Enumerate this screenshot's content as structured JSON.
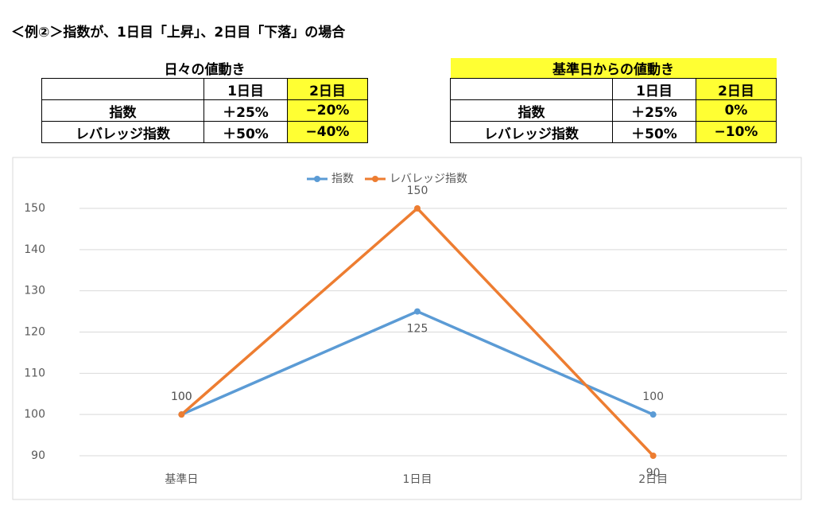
{
  "header": {
    "title": "＜例②＞指数が、1日目「上昇」、2日目「下落」の場合"
  },
  "tables": [
    {
      "title": "日々の値動き",
      "columns": [
        "1日目",
        "2日目"
      ],
      "rows": [
        [
          "指数",
          "＋25%",
          "−20%"
        ],
        [
          "レバレッジ指数",
          "＋50%",
          "−40%"
        ]
      ]
    },
    {
      "title": "基準日からの値動き",
      "columns": [
        "1日目",
        "2日目"
      ],
      "rows": [
        [
          "指数",
          "＋25%",
          "0%"
        ],
        [
          "レバレッジ指数",
          "＋50%",
          "−10%"
        ]
      ]
    }
  ],
  "chart_data": {
    "type": "line",
    "categories": [
      "基準日",
      "1日目",
      "2日目"
    ],
    "series": [
      {
        "name": "指数",
        "color": "#5b9bd5",
        "values": [
          100,
          125,
          100
        ]
      },
      {
        "name": "レバレッジ指数",
        "color": "#ed7d31",
        "values": [
          100,
          150,
          90
        ]
      }
    ],
    "ylim": [
      90,
      150
    ],
    "yticks": [
      90,
      100,
      110,
      120,
      130,
      140,
      150
    ],
    "grid": true,
    "legend": "top",
    "data_labels": true
  }
}
